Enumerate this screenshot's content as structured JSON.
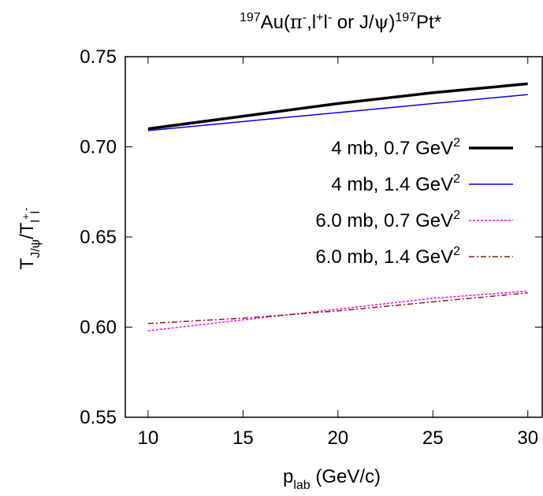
{
  "chart_data": {
    "type": "line",
    "title": {
      "mass1": "197",
      "t1": "Au(",
      "pi": "π",
      "piSup": "-",
      "t2": ",l",
      "lSup1": "+",
      "t3": "l",
      "lSup2": "-",
      "t4": " or J/",
      "psi": "ψ",
      "t5": ")",
      "mass2": "197",
      "t6": "Pt*"
    },
    "xlabel": {
      "main": "p",
      "sub": "lab",
      "rest": " (GeV/c)"
    },
    "ylabel": {
      "T1": "T",
      "sub1": "J/ψ",
      "slash": "/T",
      "sub2": "l",
      "sup2a": "+",
      "sub2b": "l",
      "sup2b": "-"
    },
    "xlim": [
      8.8,
      30.8
    ],
    "ylim": [
      0.55,
      0.75
    ],
    "xticks": [
      10,
      15,
      20,
      25,
      30
    ],
    "yticks": [
      0.55,
      0.6,
      0.65,
      0.7,
      0.75
    ],
    "ytickLabels": [
      "0.55",
      "0.60",
      "0.65",
      "0.70",
      "0.75"
    ],
    "legend_position": "right",
    "series": [
      {
        "name": "4 mb, 0.7 GeV",
        "sup": "2",
        "color": "#000000",
        "dash": "solid",
        "width": 3.5,
        "x": [
          10,
          15,
          20,
          25,
          30
        ],
        "y": [
          0.71,
          0.717,
          0.724,
          0.73,
          0.735
        ]
      },
      {
        "name": "4 mb, 1.4 GeV",
        "sup": "2",
        "color": "#0000ff",
        "dash": "solid",
        "width": 1.5,
        "x": [
          10,
          15,
          20,
          25,
          30
        ],
        "y": [
          0.709,
          0.714,
          0.719,
          0.724,
          0.729
        ]
      },
      {
        "name": "6.0 mb, 0.7 GeV",
        "sup": "2",
        "color": "#ff00ff",
        "dash": "dotted",
        "width": 1.5,
        "x": [
          10,
          15,
          20,
          25,
          30
        ],
        "y": [
          0.598,
          0.604,
          0.61,
          0.616,
          0.62
        ]
      },
      {
        "name": "6.0 mb, 1.4 GeV",
        "sup": "2",
        "color": "#8b1a1a",
        "dash": "dashdot",
        "width": 1.5,
        "x": [
          10,
          15,
          20,
          25,
          30
        ],
        "y": [
          0.602,
          0.605,
          0.609,
          0.614,
          0.619
        ]
      }
    ]
  }
}
